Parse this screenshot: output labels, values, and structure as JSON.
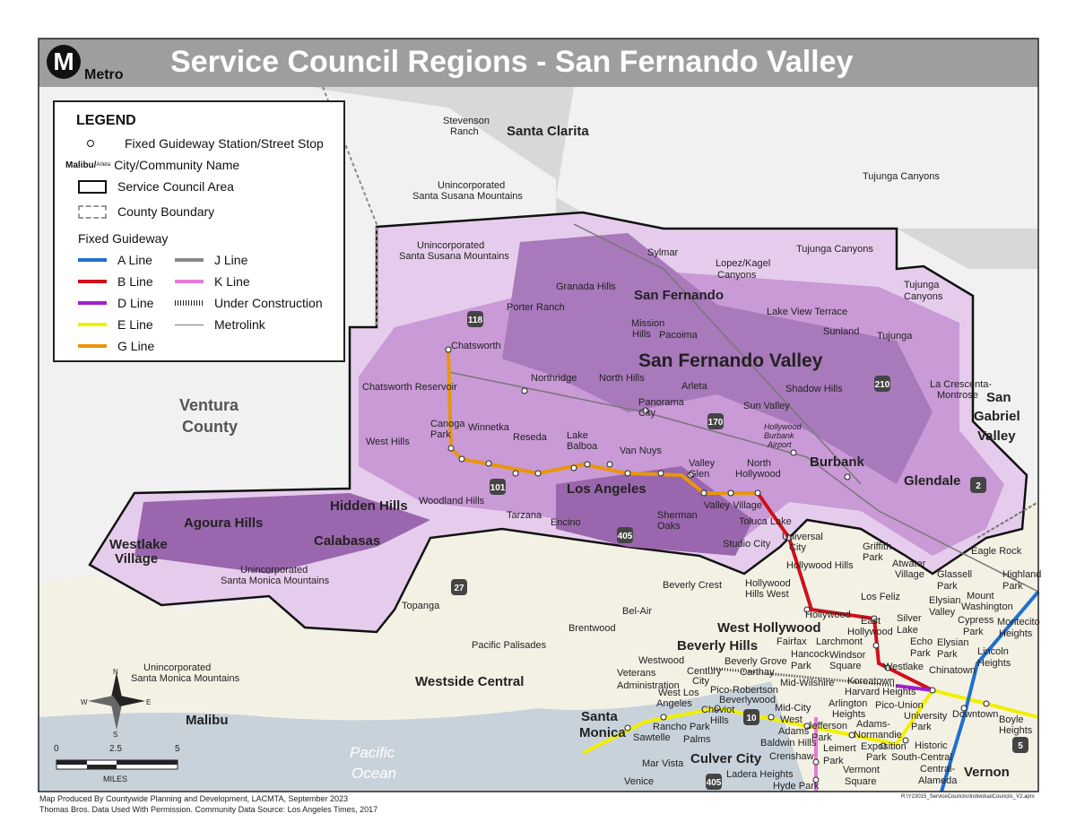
{
  "header": {
    "title": "Service Council Regions - San Fernando Valley",
    "logo_letter": "M",
    "logo_text": "Metro"
  },
  "legend": {
    "title": "LEGEND",
    "station": "Fixed Guideway Station/Street Stop",
    "city_sample_big": "Malibu/",
    "city_sample_small": "Arleta",
    "city": "City/Community Name",
    "council_area": "Service Council Area",
    "county": "County Boundary",
    "guideway_title": "Fixed Guideway",
    "lines": [
      {
        "label": "A Line",
        "color": "#1f6fd0"
      },
      {
        "label": "B Line",
        "color": "#d0101a"
      },
      {
        "label": "D Line",
        "color": "#a020d0"
      },
      {
        "label": "E Line",
        "color": "#f0f000"
      },
      {
        "label": "G Line",
        "color": "#e8960c"
      },
      {
        "label": "J Line",
        "color": "#888888"
      },
      {
        "label": "K Line",
        "color": "#e87ad8"
      },
      {
        "label": "Under Construction",
        "color": "#222222"
      },
      {
        "label": "Metrolink",
        "color": "#777777"
      }
    ]
  },
  "colors": {
    "region_light": "#e6ccec",
    "region_mid": "#c99ad6",
    "region_dark": "#9a66ad",
    "north": "#d8d8d8",
    "ventura": "#f1f1f1",
    "south": "#f3f1e4",
    "ocean": "#c8d2db"
  },
  "labels": [
    {
      "t": "San Fernando Valley",
      "c": "major"
    },
    {
      "t": "Westside Central",
      "c": "city"
    },
    {
      "t": "Ventura",
      "c": "region"
    },
    {
      "t": "County",
      "c": "region"
    },
    {
      "t": "San",
      "c": "city"
    },
    {
      "t": "Gabriel",
      "c": "city"
    },
    {
      "t": "Valley",
      "c": "city"
    },
    {
      "t": "Santa Clarita",
      "c": "city"
    },
    {
      "t": "San Fernando",
      "c": "city"
    },
    {
      "t": "Los Angeles",
      "c": "city"
    },
    {
      "t": "Burbank",
      "c": "city"
    },
    {
      "t": "Glendale",
      "c": "city"
    },
    {
      "t": "Hidden Hills",
      "c": "city"
    },
    {
      "t": "Agoura Hills",
      "c": "city"
    },
    {
      "t": "Calabasas",
      "c": "city"
    },
    {
      "t": "Westlake",
      "c": "city"
    },
    {
      "t": "Village",
      "c": "city"
    },
    {
      "t": "West Hollywood",
      "c": "city"
    },
    {
      "t": "Beverly Hills",
      "c": "city"
    },
    {
      "t": "Santa",
      "c": "city"
    },
    {
      "t": "Monica",
      "c": "city"
    },
    {
      "t": "Culver City",
      "c": "city"
    },
    {
      "t": "Malibu",
      "c": "city"
    },
    {
      "t": "Vernon",
      "c": "city"
    },
    {
      "t": "Stevenson",
      "c": "community"
    },
    {
      "t": "Ranch",
      "c": "community"
    },
    {
      "t": "Unincorporated",
      "c": "community"
    },
    {
      "t": "Santa Susana Mountains",
      "c": "community"
    },
    {
      "t": "Unincorporated",
      "c": "community"
    },
    {
      "t": "Santa Susana Mountains",
      "c": "community"
    },
    {
      "t": "Tujunga Canyons",
      "c": "community"
    },
    {
      "t": "Tujunga Canyons",
      "c": "community"
    },
    {
      "t": "Tujunga",
      "c": "community"
    },
    {
      "t": "Canyons",
      "c": "community"
    },
    {
      "t": "Sylmar",
      "c": "community"
    },
    {
      "t": "Lopez/Kagel",
      "c": "community"
    },
    {
      "t": "Canyons",
      "c": "community"
    },
    {
      "t": "Granada Hills",
      "c": "community"
    },
    {
      "t": "Porter Ranch",
      "c": "community"
    },
    {
      "t": "Mission",
      "c": "community"
    },
    {
      "t": "Hills",
      "c": "community"
    },
    {
      "t": "Pacoima",
      "c": "community"
    },
    {
      "t": "Lake View Terrace",
      "c": "community"
    },
    {
      "t": "Sunland",
      "c": "community"
    },
    {
      "t": "Tujunga",
      "c": "community"
    },
    {
      "t": "Chatsworth",
      "c": "community"
    },
    {
      "t": "Chatsworth Reservoir",
      "c": "community"
    },
    {
      "t": "Northridge",
      "c": "community"
    },
    {
      "t": "North Hills",
      "c": "community"
    },
    {
      "t": "Panorama",
      "c": "community"
    },
    {
      "t": "City",
      "c": "community"
    },
    {
      "t": "Arleta",
      "c": "community"
    },
    {
      "t": "Sun Valley",
      "c": "community"
    },
    {
      "t": "Shadow Hills",
      "c": "community"
    },
    {
      "t": "La Crescenta-",
      "c": "community"
    },
    {
      "t": "Montrose",
      "c": "community"
    },
    {
      "t": "Hollywood",
      "c": "small"
    },
    {
      "t": "Burbank",
      "c": "small"
    },
    {
      "t": "Airport",
      "c": "small"
    },
    {
      "t": "West Hills",
      "c": "community"
    },
    {
      "t": "Canoga",
      "c": "community"
    },
    {
      "t": "Park",
      "c": "community"
    },
    {
      "t": "Winnetka",
      "c": "community"
    },
    {
      "t": "Reseda",
      "c": "community"
    },
    {
      "t": "Lake",
      "c": "community"
    },
    {
      "t": "Balboa",
      "c": "community"
    },
    {
      "t": "Van Nuys",
      "c": "community"
    },
    {
      "t": "Valley",
      "c": "community"
    },
    {
      "t": "Glen",
      "c": "community"
    },
    {
      "t": "North",
      "c": "community"
    },
    {
      "t": "Hollywood",
      "c": "community"
    },
    {
      "t": "Woodland Hills",
      "c": "community"
    },
    {
      "t": "Tarzana",
      "c": "community"
    },
    {
      "t": "Encino",
      "c": "community"
    },
    {
      "t": "Sherman",
      "c": "community"
    },
    {
      "t": "Oaks",
      "c": "community"
    },
    {
      "t": "Valley Village",
      "c": "community"
    },
    {
      "t": "Toluca Lake",
      "c": "community"
    },
    {
      "t": "Studio City",
      "c": "community"
    },
    {
      "t": "Universal",
      "c": "community"
    },
    {
      "t": "City",
      "c": "community"
    },
    {
      "t": "Unincorporated",
      "c": "community"
    },
    {
      "t": "Santa Monica Mountains",
      "c": "community"
    },
    {
      "t": "Unincorporated",
      "c": "community"
    },
    {
      "t": "Santa Monica Mountains",
      "c": "community"
    },
    {
      "t": "Topanga",
      "c": "community"
    },
    {
      "t": "Pacific Palisades",
      "c": "community"
    },
    {
      "t": "Brentwood",
      "c": "community"
    },
    {
      "t": "Bel-Air",
      "c": "community"
    },
    {
      "t": "Beverly Crest",
      "c": "community"
    },
    {
      "t": "Hollywood Hills",
      "c": "community"
    },
    {
      "t": "Hollywood",
      "c": "community"
    },
    {
      "t": "Hills West",
      "c": "community"
    },
    {
      "t": "Griffith",
      "c": "community"
    },
    {
      "t": "Park",
      "c": "community"
    },
    {
      "t": "Atwater",
      "c": "community"
    },
    {
      "t": "Village",
      "c": "community"
    },
    {
      "t": "Eagle Rock",
      "c": "community"
    },
    {
      "t": "Glassell",
      "c": "community"
    },
    {
      "t": "Park",
      "c": "community"
    },
    {
      "t": "Highland",
      "c": "community"
    },
    {
      "t": "Park",
      "c": "community"
    },
    {
      "t": "Los Feliz",
      "c": "community"
    },
    {
      "t": "Hollywood",
      "c": "community"
    },
    {
      "t": "East",
      "c": "community"
    },
    {
      "t": "Hollywood",
      "c": "community"
    },
    {
      "t": "Silver",
      "c": "community"
    },
    {
      "t": "Lake",
      "c": "community"
    },
    {
      "t": "Elysian",
      "c": "community"
    },
    {
      "t": "Valley",
      "c": "community"
    },
    {
      "t": "Mount",
      "c": "community"
    },
    {
      "t": "Washington",
      "c": "community"
    },
    {
      "t": "Cypress",
      "c": "community"
    },
    {
      "t": "Park",
      "c": "community"
    },
    {
      "t": "Montecito",
      "c": "community"
    },
    {
      "t": "Heights",
      "c": "community"
    },
    {
      "t": "Echo",
      "c": "community"
    },
    {
      "t": "Park",
      "c": "community"
    },
    {
      "t": "Elysian",
      "c": "community"
    },
    {
      "t": "Park",
      "c": "community"
    },
    {
      "t": "Lincoln",
      "c": "community"
    },
    {
      "t": "Heights",
      "c": "community"
    },
    {
      "t": "Fairfax",
      "c": "community"
    },
    {
      "t": "Larchmont",
      "c": "community"
    },
    {
      "t": "Hancock",
      "c": "community"
    },
    {
      "t": "Park",
      "c": "community"
    },
    {
      "t": "Windsor",
      "c": "community"
    },
    {
      "t": "Square",
      "c": "community"
    },
    {
      "t": "Westlake",
      "c": "community"
    },
    {
      "t": "Chinatown",
      "c": "community"
    },
    {
      "t": "Westwood",
      "c": "community"
    },
    {
      "t": "Beverly Grove",
      "c": "community"
    },
    {
      "t": "Carthay",
      "c": "community"
    },
    {
      "t": "Mid-Wilshire",
      "c": "community"
    },
    {
      "t": "Koreatown",
      "c": "community"
    },
    {
      "t": "Veterans",
      "c": "community"
    },
    {
      "t": "Administration",
      "c": "community"
    },
    {
      "t": "Century",
      "c": "community"
    },
    {
      "t": "City",
      "c": "community"
    },
    {
      "t": "Pico-Robertson",
      "c": "community"
    },
    {
      "t": "Beverlywood",
      "c": "community"
    },
    {
      "t": "Harvard Heights",
      "c": "community"
    },
    {
      "t": "Arlington",
      "c": "community"
    },
    {
      "t": "Heights",
      "c": "community"
    },
    {
      "t": "Pico-Union",
      "c": "community"
    },
    {
      "t": "West Los",
      "c": "community"
    },
    {
      "t": "Angeles",
      "c": "community"
    },
    {
      "t": "Cheviot",
      "c": "community"
    },
    {
      "t": "Hills",
      "c": "community"
    },
    {
      "t": "Rancho Park",
      "c": "community"
    },
    {
      "t": "Sawtelle",
      "c": "community"
    },
    {
      "t": "Mid-City",
      "c": "community"
    },
    {
      "t": "West",
      "c": "community"
    },
    {
      "t": "Adams",
      "c": "community"
    },
    {
      "t": "Jefferson",
      "c": "community"
    },
    {
      "t": "Park",
      "c": "community"
    },
    {
      "t": "Adams-",
      "c": "community"
    },
    {
      "t": "Normandie",
      "c": "community"
    },
    {
      "t": "University",
      "c": "community"
    },
    {
      "t": "Park",
      "c": "community"
    },
    {
      "t": "Downtown",
      "c": "community"
    },
    {
      "t": "Boyle",
      "c": "community"
    },
    {
      "t": "Heights",
      "c": "community"
    },
    {
      "t": "Palms",
      "c": "community"
    },
    {
      "t": "Baldwin Hills",
      "c": "community"
    },
    {
      "t": "Crenshaw",
      "c": "community"
    },
    {
      "t": "Leimert",
      "c": "community"
    },
    {
      "t": "Park",
      "c": "community"
    },
    {
      "t": "Exposition",
      "c": "community"
    },
    {
      "t": "Park",
      "c": "community"
    },
    {
      "t": "Historic",
      "c": "community"
    },
    {
      "t": "South-Central",
      "c": "community"
    },
    {
      "t": "Mar Vista",
      "c": "community"
    },
    {
      "t": "Ladera Heights",
      "c": "community"
    },
    {
      "t": "Vermont",
      "c": "community"
    },
    {
      "t": "Square",
      "c": "community"
    },
    {
      "t": "Central-",
      "c": "community"
    },
    {
      "t": "Alameda",
      "c": "community"
    },
    {
      "t": "Venice",
      "c": "community"
    },
    {
      "t": "Hyde Park",
      "c": "community"
    },
    {
      "t": "Pacific",
      "c": "water"
    },
    {
      "t": "Ocean",
      "c": "water"
    }
  ],
  "highways": [
    "118",
    "101",
    "405",
    "170",
    "210",
    "2",
    "27",
    "10",
    "405",
    "5"
  ],
  "compass": {
    "n": "N",
    "s": "S",
    "e": "E",
    "w": "W"
  },
  "scale": {
    "ticks": [
      "0",
      "2.5",
      "5"
    ],
    "unit": "MILES"
  },
  "footer": {
    "line1": "Map Produced By Countywide Planning and Development, LACMTA, September 2023",
    "line2": "Thomas Bros. Data Used With Permission. Community Data Source: Los Angeles Times, 2017",
    "file": "R:\\Y23015_ServiceCouncils\\IndividualCouncils_V2.aprx"
  }
}
